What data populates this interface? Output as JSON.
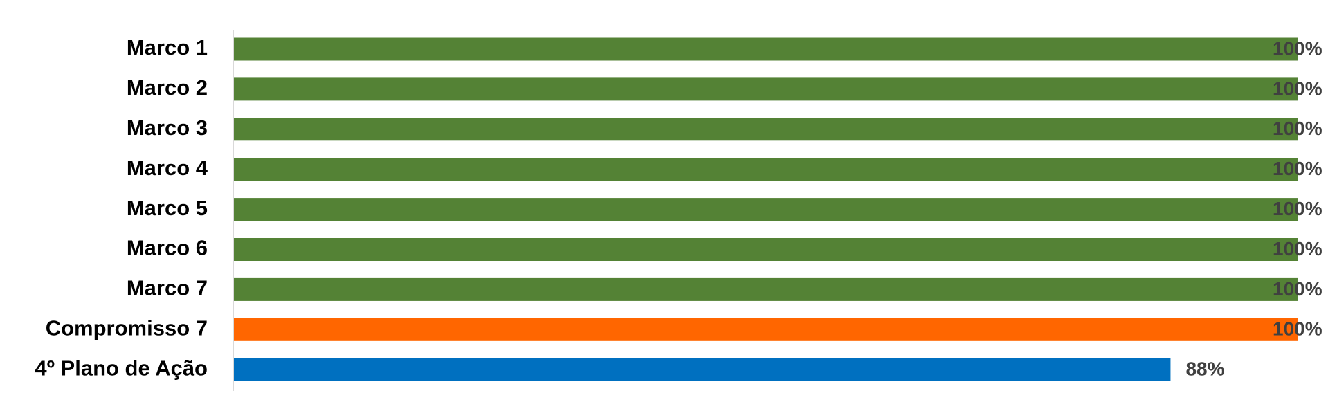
{
  "chart_data": {
    "type": "hbar",
    "categories": [
      "Marco 1",
      "Marco 2",
      "Marco 3",
      "Marco 4",
      "Marco 5",
      "Marco 6",
      "Marco 7",
      "Compromisso 7",
      "4º Plano de Ação"
    ],
    "values": [
      100,
      100,
      100,
      100,
      100,
      100,
      100,
      100,
      88
    ],
    "value_labels": [
      "100%",
      "100%",
      "100%",
      "100%",
      "100%",
      "100%",
      "100%",
      "100%",
      "88%"
    ],
    "colors": [
      "#548235",
      "#548235",
      "#548235",
      "#548235",
      "#548235",
      "#548235",
      "#548235",
      "#ff6600",
      "#0070c0"
    ],
    "xlim": [
      0,
      100
    ]
  }
}
